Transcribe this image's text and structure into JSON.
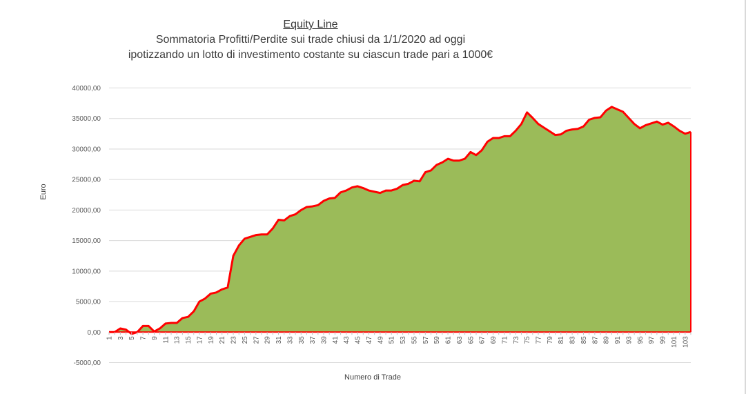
{
  "chart_data": {
    "type": "area",
    "title": "Equity Line",
    "subtitle": [
      "Sommatoria Profitti/Perdite sui trade chiusi da 1/1/2020 ad oggi",
      "ipotizzando un lotto di investimento costante su ciascun trade pari a 1000€"
    ],
    "xlabel": "Numero di Trade",
    "ylabel": "Euro",
    "ylim": [
      -5000,
      40000
    ],
    "ytick_labels": [
      "-5000,00",
      "0,00",
      "5000,00",
      "10000,00",
      "15000,00",
      "20000,00",
      "25000,00",
      "30000,00",
      "35000,00",
      "40000,00"
    ],
    "x": [
      1,
      2,
      3,
      4,
      5,
      6,
      7,
      8,
      9,
      10,
      11,
      12,
      13,
      14,
      15,
      16,
      17,
      18,
      19,
      20,
      21,
      22,
      23,
      24,
      25,
      26,
      27,
      28,
      29,
      30,
      31,
      32,
      33,
      34,
      35,
      36,
      37,
      38,
      39,
      40,
      41,
      42,
      43,
      44,
      45,
      46,
      47,
      48,
      49,
      50,
      51,
      52,
      53,
      54,
      55,
      56,
      57,
      58,
      59,
      60,
      61,
      62,
      63,
      64,
      65,
      66,
      67,
      68,
      69,
      70,
      71,
      72,
      73,
      74,
      75,
      76,
      77,
      78,
      79,
      80,
      81,
      82,
      83,
      84,
      85,
      86,
      87,
      88,
      89,
      90,
      91,
      92,
      93,
      94,
      95,
      96,
      97,
      98,
      99,
      100,
      101,
      102,
      103,
      104
    ],
    "x_tick_labels": [
      "1",
      "3",
      "5",
      "7",
      "9",
      "11",
      "13",
      "15",
      "17",
      "19",
      "21",
      "23",
      "25",
      "27",
      "29",
      "31",
      "33",
      "35",
      "37",
      "39",
      "41",
      "43",
      "45",
      "47",
      "49",
      "51",
      "53",
      "55",
      "57",
      "59",
      "61",
      "63",
      "65",
      "67",
      "69",
      "71",
      "73",
      "75",
      "77",
      "79",
      "81",
      "83",
      "85",
      "87",
      "89",
      "91",
      "93",
      "95",
      "97",
      "99",
      "101",
      "103"
    ],
    "values": [
      0,
      0,
      600,
      400,
      -300,
      0,
      1000,
      1000,
      100,
      600,
      1400,
      1500,
      1500,
      2300,
      2500,
      3400,
      5000,
      5500,
      6300,
      6500,
      7000,
      7300,
      12500,
      14200,
      15300,
      15600,
      15900,
      16000,
      16000,
      17000,
      18400,
      18300,
      19000,
      19300,
      20000,
      20500,
      20600,
      20800,
      21500,
      21900,
      22000,
      22900,
      23200,
      23700,
      23900,
      23600,
      23200,
      23000,
      22800,
      23200,
      23200,
      23500,
      24100,
      24300,
      24800,
      24700,
      26200,
      26500,
      27400,
      27800,
      28400,
      28100,
      28100,
      28400,
      29500,
      29000,
      29800,
      31200,
      31800,
      31800,
      32100,
      32100,
      33000,
      34100,
      36000,
      35100,
      34100,
      33500,
      32900,
      32300,
      32400,
      33000,
      33200,
      33300,
      33700,
      34800,
      35100,
      35200,
      36300,
      36900,
      36500,
      36100,
      35100,
      34100,
      33400,
      33900,
      34200,
      34500,
      34000,
      34300,
      33700,
      33000,
      32500,
      32800
    ],
    "grid": true,
    "legend": "none",
    "colors": {
      "fill": "#9bbb59",
      "line": "#ff0000",
      "grid": "#d9d9d9",
      "axis": "#bfbfbf"
    }
  }
}
